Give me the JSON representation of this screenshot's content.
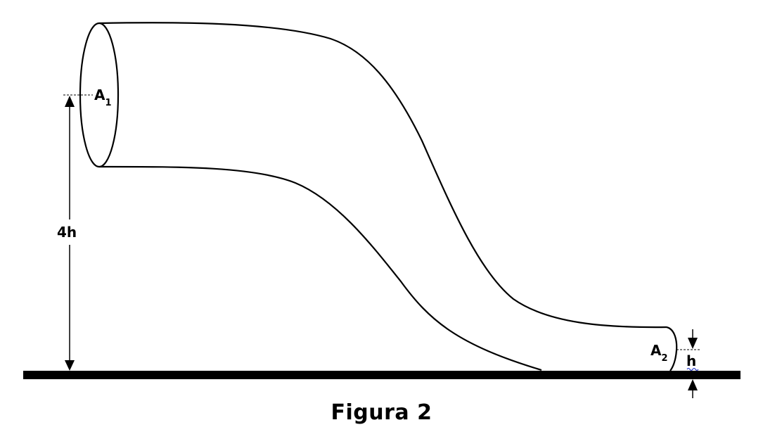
{
  "labels": {
    "area_top": "A",
    "area_top_sub": "1",
    "area_bottom": "A",
    "area_bottom_sub": "2",
    "height_large": "4h",
    "height_small": "h"
  },
  "caption": "Figura 2"
}
